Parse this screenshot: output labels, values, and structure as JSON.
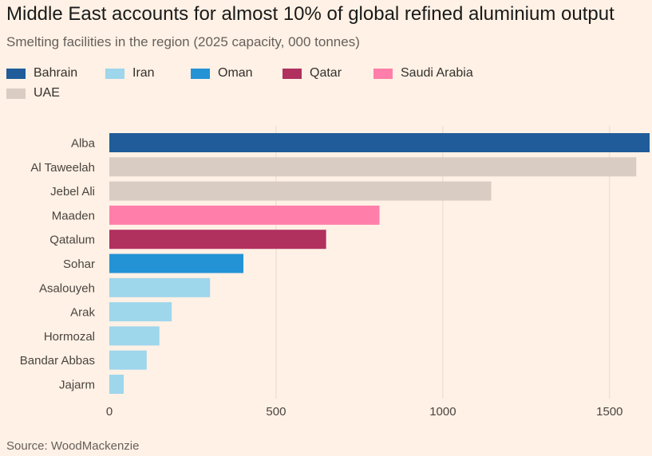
{
  "title": "Middle East accounts for almost 10% of global refined aluminium output",
  "subtitle": "Smelting facilities in the region (2025 capacity, 000 tonnes)",
  "source": "Source: WoodMackenzie",
  "legend": [
    {
      "name": "Bahrain",
      "color": "#1F5C99"
    },
    {
      "name": "Iran",
      "color": "#9ED6EC"
    },
    {
      "name": "Oman",
      "color": "#2393D6"
    },
    {
      "name": "Qatar",
      "color": "#B0305E"
    },
    {
      "name": "Saudi Arabia",
      "color": "#FF7FAA"
    },
    {
      "name": "UAE",
      "color": "#D9CCC3"
    }
  ],
  "chart_data": {
    "type": "bar",
    "orientation": "horizontal",
    "title": "Middle East accounts for almost 10% of global refined aluminium output",
    "subtitle": "Smelting facilities in the region (2025 capacity, 000 tonnes)",
    "categories": [
      "Alba",
      "Al Taweelah",
      "Jebel Ali",
      "Maaden",
      "Qatalum",
      "Sohar",
      "Asalouyeh",
      "Arak",
      "Hormozal",
      "Bandar Abbas",
      "Jajarm"
    ],
    "values": [
      1620,
      1580,
      1145,
      810,
      650,
      402,
      302,
      187,
      150,
      112,
      43
    ],
    "countries": [
      "Bahrain",
      "UAE",
      "UAE",
      "Saudi Arabia",
      "Qatar",
      "Oman",
      "Iran",
      "Iran",
      "Iran",
      "Iran",
      "Iran"
    ],
    "xlim": [
      0,
      1620
    ],
    "xticks": [
      0,
      500,
      1000,
      1500
    ],
    "xtick_labels": [
      "0",
      "500",
      "1000",
      "1500"
    ],
    "grid": true,
    "legend_position": "top"
  }
}
